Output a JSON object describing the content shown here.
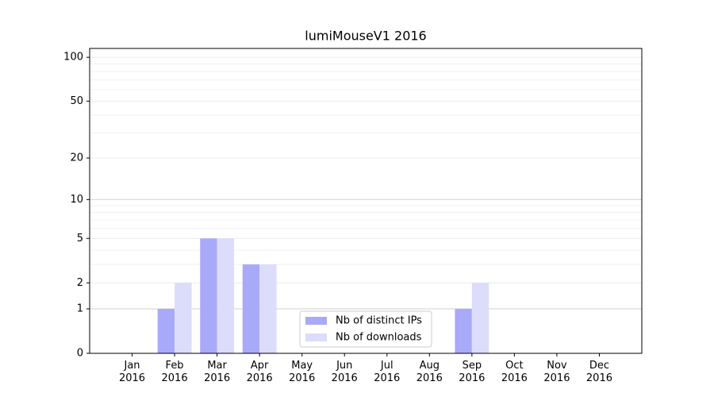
{
  "chart_data": {
    "type": "bar",
    "title": "lumiMouseV1 2016",
    "categories": [
      "Jan\n2016",
      "Feb\n2016",
      "Mar\n2016",
      "Apr\n2016",
      "May\n2016",
      "Jun\n2016",
      "Jul\n2016",
      "Aug\n2016",
      "Sep\n2016",
      "Oct\n2016",
      "Nov\n2016",
      "Dec\n2016"
    ],
    "series": [
      {
        "name": "Nb of distinct IPs",
        "color": "#a9a9f9",
        "values": [
          0,
          1,
          5,
          3,
          0,
          0,
          0,
          0,
          1,
          0,
          0,
          0
        ]
      },
      {
        "name": "Nb of downloads",
        "color": "#dcdcfb",
        "values": [
          0,
          2,
          5,
          3,
          0,
          0,
          0,
          0,
          2,
          0,
          0,
          0
        ]
      }
    ],
    "yscale": "log1p",
    "ylim": [
      0,
      115
    ],
    "yticks": [
      0,
      1,
      2,
      5,
      10,
      20,
      50,
      100
    ],
    "minor_yticks": [
      3,
      4,
      6,
      7,
      8,
      9,
      30,
      40,
      60,
      70,
      80,
      90
    ],
    "major_grid": [
      1,
      10
    ],
    "grid": true,
    "legend": "lower center"
  }
}
